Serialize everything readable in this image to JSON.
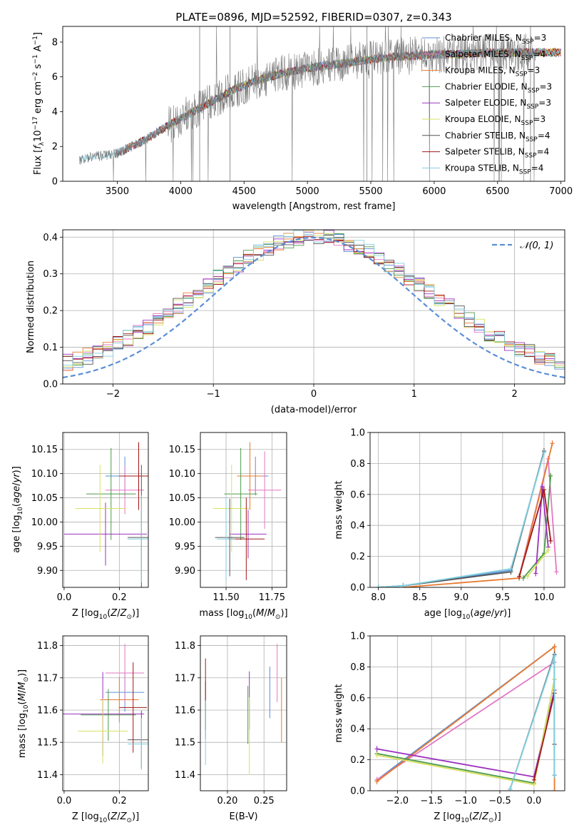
{
  "figure_title": "PLATE=0896, MJD=52592, FIBERID=0307, z=0.343",
  "colors": [
    "#5b8fd6",
    "#e377c2",
    "#e87a2e",
    "#4c9a4c",
    "#9b30c0",
    "#d8e060",
    "#555555",
    "#a01818",
    "#82d0e0"
  ],
  "chart_data": [
    {
      "id": "spectrum",
      "type": "line",
      "xlabel": "wavelength [Angstrom, rest frame]",
      "ylabel": "Flux [f_λ10^−17 erg cm^−2 s^−1 A^−1]",
      "xlim": [
        3070,
        7030
      ],
      "ylim": [
        0,
        8.9
      ],
      "xticks": [
        3500,
        4000,
        4500,
        5000,
        5500,
        6000,
        6500,
        7000
      ],
      "yticks": [
        0,
        2,
        4,
        6,
        8
      ],
      "grid": false,
      "legend_position": "upper-right",
      "legend": [
        {
          "label": "Chabrier MILES, N_SSP=3",
          "color": "#5b8fd6"
        },
        {
          "label": "Salpeter MILES, N_SSP=4",
          "color": "#e377c2"
        },
        {
          "label": "Kroupa MILES, N_SSP=3",
          "color": "#e87a2e"
        },
        {
          "label": "Chabrier ELODIE, N_SSP=3",
          "color": "#4c9a4c"
        },
        {
          "label": "Salpeter ELODIE, N_SSP=3",
          "color": "#9b30c0"
        },
        {
          "label": "Kroupa ELODIE, N_SSP=3",
          "color": "#d8e060"
        },
        {
          "label": "Chabrier STELIB, N_SSP=4",
          "color": "#555555"
        },
        {
          "label": "Salpeter STELIB, N_SSP=4",
          "color": "#a01818"
        },
        {
          "label": "Kroupa STELIB, N_SSP=4",
          "color": "#82d0e0"
        }
      ],
      "data_curve": {
        "x": [
          3200,
          3300,
          3500,
          3700,
          3900,
          4000,
          4200,
          4400,
          4600,
          4800,
          5000,
          5200,
          5400,
          5600,
          5800,
          6000,
          6200,
          6400,
          6600,
          6800
        ],
        "y": [
          1.2,
          1.4,
          1.6,
          2.3,
          3.2,
          3.6,
          4.4,
          5.2,
          5.8,
          6.2,
          6.5,
          6.7,
          6.9,
          7.1,
          7.2,
          7.3,
          7.3,
          7.4,
          7.4,
          7.4
        ]
      }
    },
    {
      "id": "residual_hist",
      "type": "histogram",
      "xlabel": "(data-model)/error",
      "ylabel": "Normed distribution",
      "xlim": [
        -2.5,
        2.5
      ],
      "ylim": [
        0,
        0.42
      ],
      "xticks": [
        -2,
        -1,
        0,
        1,
        2
      ],
      "yticks": [
        0.0,
        0.1,
        0.2,
        0.3,
        0.4
      ],
      "grid": true,
      "legend_position": "upper-right",
      "legend": [
        {
          "label": "𝒩(0, 1)",
          "color": "#5b8fd6",
          "style": "dashed"
        }
      ],
      "bin_width": 0.1
    },
    {
      "id": "age_vs_Z",
      "type": "errorbar",
      "xlabel": "Z [log10(Z/Z⊙)]",
      "ylabel": "age  [log10(age/yr)]",
      "xlim": [
        -0.005,
        0.305
      ],
      "ylim": [
        9.865,
        10.185
      ],
      "xticks": [
        0.0,
        0.2
      ],
      "yticks": [
        9.9,
        9.95,
        10.0,
        10.05,
        10.1,
        10.15
      ],
      "grid": true,
      "points": [
        {
          "x": 0.22,
          "y": 10.095,
          "xerr": 0.07,
          "yerr": 0.04
        },
        {
          "x": 0.22,
          "y": 10.066,
          "xerr": 0.07,
          "yerr": 0.05
        },
        {
          "x": 0.27,
          "y": 10.095,
          "xerr": 0.07,
          "yerr": 0.07
        },
        {
          "x": 0.17,
          "y": 10.058,
          "xerr": 0.09,
          "yerr": 0.095
        },
        {
          "x": 0.15,
          "y": 9.975,
          "xerr": 0.15,
          "yerr": 0.065
        },
        {
          "x": 0.13,
          "y": 10.028,
          "xerr": 0.09,
          "yerr": 0.09
        },
        {
          "x": 0.28,
          "y": 9.968,
          "xerr": 0.05,
          "yerr": 0.15
        },
        {
          "x": 0.27,
          "y": 10.095,
          "xerr": 0.07,
          "yerr": 0.07
        },
        {
          "x": 0.28,
          "y": 9.965,
          "xerr": 0.05,
          "yerr": 0.09
        }
      ]
    },
    {
      "id": "age_vs_mass",
      "type": "errorbar",
      "xlabel": "mass [log10(M/M⊙)]",
      "ylabel": "",
      "xlim": [
        11.36,
        11.83
      ],
      "ylim": [
        9.865,
        10.185
      ],
      "xticks": [
        11.5,
        11.75
      ],
      "yticks": [
        9.9,
        9.95,
        10.0,
        10.05,
        10.1,
        10.15
      ],
      "grid": true,
      "points": [
        {
          "x": 11.66,
          "y": 10.095,
          "xerr": 0.07,
          "yerr": 0.04
        },
        {
          "x": 11.71,
          "y": 10.066,
          "xerr": 0.09,
          "yerr": 0.08
        },
        {
          "x": 11.63,
          "y": 10.095,
          "xerr": 0.07,
          "yerr": 0.07
        },
        {
          "x": 11.58,
          "y": 10.058,
          "xerr": 0.09,
          "yerr": 0.095
        },
        {
          "x": 11.62,
          "y": 9.975,
          "xerr": 0.1,
          "yerr": 0.05
        },
        {
          "x": 11.53,
          "y": 10.028,
          "xerr": 0.1,
          "yerr": 0.09
        },
        {
          "x": 11.52,
          "y": 9.968,
          "xerr": 0.08,
          "yerr": 0.08
        },
        {
          "x": 11.61,
          "y": 9.965,
          "xerr": 0.1,
          "yerr": 0.085
        },
        {
          "x": 11.5,
          "y": 9.965,
          "xerr": 0.05,
          "yerr": 0.085
        }
      ]
    },
    {
      "id": "weight_vs_age",
      "type": "line",
      "xlabel": "age  [log10(age/yr)]",
      "ylabel": "mass weight",
      "xlim": [
        7.9,
        10.25
      ],
      "ylim": [
        0,
        1.0
      ],
      "xticks": [
        8.0,
        8.5,
        9.0,
        9.5,
        10.0
      ],
      "yticks": [
        0.0,
        0.2,
        0.4,
        0.6,
        0.8,
        1.0
      ],
      "grid": true,
      "series": [
        {
          "x": [
            8.0,
            8.3,
            9.6,
            10.0
          ],
          "y": [
            0.0,
            0.01,
            0.11,
            0.88
          ]
        },
        {
          "x": [
            9.7,
            10.05,
            10.15
          ],
          "y": [
            0.07,
            0.83,
            0.1
          ]
        },
        {
          "x": [
            8.3,
            9.7,
            10.1
          ],
          "y": [
            0.0,
            0.06,
            0.93
          ]
        },
        {
          "x": [
            9.75,
            10.0,
            10.08
          ],
          "y": [
            0.06,
            0.22,
            0.72
          ]
        },
        {
          "x": [
            9.9,
            9.98,
            10.05
          ],
          "y": [
            0.09,
            0.65,
            0.26
          ]
        },
        {
          "x": [
            9.8,
            10.05
          ],
          "y": [
            0.07,
            0.24
          ]
        },
        {
          "x": [
            8.0,
            8.3,
            9.6,
            10.0
          ],
          "y": [
            0.0,
            0.01,
            0.1,
            0.88
          ]
        },
        {
          "x": [
            9.7,
            10.0,
            10.08
          ],
          "y": [
            0.07,
            0.63,
            0.3
          ]
        },
        {
          "x": [
            8.0,
            8.3,
            9.6,
            10.0
          ],
          "y": [
            0.0,
            0.01,
            0.12,
            0.87
          ]
        }
      ]
    },
    {
      "id": "mass_vs_Z",
      "type": "errorbar",
      "xlabel": "Z [log10(Z/Z⊙)]",
      "ylabel": "mass [log10(M/M⊙)]",
      "xlim": [
        -0.005,
        0.305
      ],
      "ylim": [
        11.35,
        11.83
      ],
      "xticks": [
        0.0,
        0.2
      ],
      "yticks": [
        11.4,
        11.5,
        11.6,
        11.7,
        11.8
      ],
      "grid": true,
      "points": [
        {
          "x": 0.22,
          "y": 11.655,
          "xerr": 0.07,
          "yerr": 0.06
        },
        {
          "x": 0.22,
          "y": 11.715,
          "xerr": 0.07,
          "yerr": 0.09
        },
        {
          "x": 0.2,
          "y": 11.632,
          "xerr": 0.07,
          "yerr": 0.07
        },
        {
          "x": 0.16,
          "y": 11.585,
          "xerr": 0.1,
          "yerr": 0.08
        },
        {
          "x": 0.14,
          "y": 11.588,
          "xerr": 0.15,
          "yerr": 0.13
        },
        {
          "x": 0.14,
          "y": 11.535,
          "xerr": 0.09,
          "yerr": 0.1
        },
        {
          "x": 0.28,
          "y": 11.508,
          "xerr": 0.05,
          "yerr": 0.09
        },
        {
          "x": 0.25,
          "y": 11.608,
          "xerr": 0.05,
          "yerr": 0.14
        },
        {
          "x": 0.28,
          "y": 11.495,
          "xerr": 0.05,
          "yerr": 0.08
        }
      ]
    },
    {
      "id": "mass_vs_ebv",
      "type": "errorbar",
      "xlabel": "E(B-V)",
      "ylabel": "",
      "xlim": [
        0.163,
        0.281
      ],
      "ylim": [
        11.35,
        11.83
      ],
      "xticks": [
        0.2,
        0.25
      ],
      "yticks": [
        11.4,
        11.5,
        11.6,
        11.7,
        11.8
      ],
      "grid": true,
      "points": [
        {
          "x": 0.258,
          "y": 11.655,
          "yerr": 0.08
        },
        {
          "x": 0.268,
          "y": 11.715,
          "yerr": 0.09
        },
        {
          "x": 0.274,
          "y": 11.6,
          "yerr": 0.1
        },
        {
          "x": 0.228,
          "y": 11.585,
          "yerr": 0.09
        },
        {
          "x": 0.23,
          "y": 11.63,
          "yerr": 0.09
        },
        {
          "x": 0.23,
          "y": 11.52,
          "yerr": 0.12
        },
        {
          "x": 0.17,
          "y": 11.6,
          "yerr": 0.09
        },
        {
          "x": 0.17,
          "y": 11.65,
          "yerr": 0.11
        },
        {
          "x": 0.17,
          "y": 11.53,
          "yerr": 0.1
        }
      ]
    },
    {
      "id": "weight_vs_Z",
      "type": "line",
      "xlabel": "Z [log10(Z/Z⊙)]",
      "ylabel": "mass weight",
      "xlim": [
        -2.4,
        0.45
      ],
      "ylim": [
        0,
        1.0
      ],
      "xticks": [
        -2.0,
        -1.5,
        -1.0,
        -0.5,
        0.0
      ],
      "yticks": [
        0.0,
        0.2,
        0.4,
        0.6,
        0.8,
        1.0
      ],
      "grid": true,
      "series": [
        {
          "x": [
            -2.3,
            0.3
          ],
          "y": [
            0.07,
            0.93
          ]
        },
        {
          "x": [
            -2.3,
            0.3,
            0.3
          ],
          "y": [
            0.07,
            0.83,
            0.1
          ]
        },
        {
          "x": [
            -2.3,
            0.3,
            0.3
          ],
          "y": [
            0.06,
            0.93,
            0.0
          ]
        },
        {
          "x": [
            -2.3,
            0.0,
            0.3
          ],
          "y": [
            0.24,
            0.05,
            0.72
          ]
        },
        {
          "x": [
            -2.3,
            0.0,
            0.3
          ],
          "y": [
            0.27,
            0.09,
            0.65
          ]
        },
        {
          "x": [
            -2.3,
            0.0,
            0.3
          ],
          "y": [
            0.23,
            0.04,
            0.72
          ]
        },
        {
          "x": [
            -0.35,
            0.3,
            0.3
          ],
          "y": [
            0.01,
            0.88,
            0.1
          ]
        },
        {
          "x": [
            0.0,
            0.3,
            0.3
          ],
          "y": [
            0.07,
            0.63,
            0.3
          ]
        },
        {
          "x": [
            -0.35,
            0.3,
            0.3
          ],
          "y": [
            0.01,
            0.87,
            0.1
          ]
        }
      ]
    }
  ]
}
